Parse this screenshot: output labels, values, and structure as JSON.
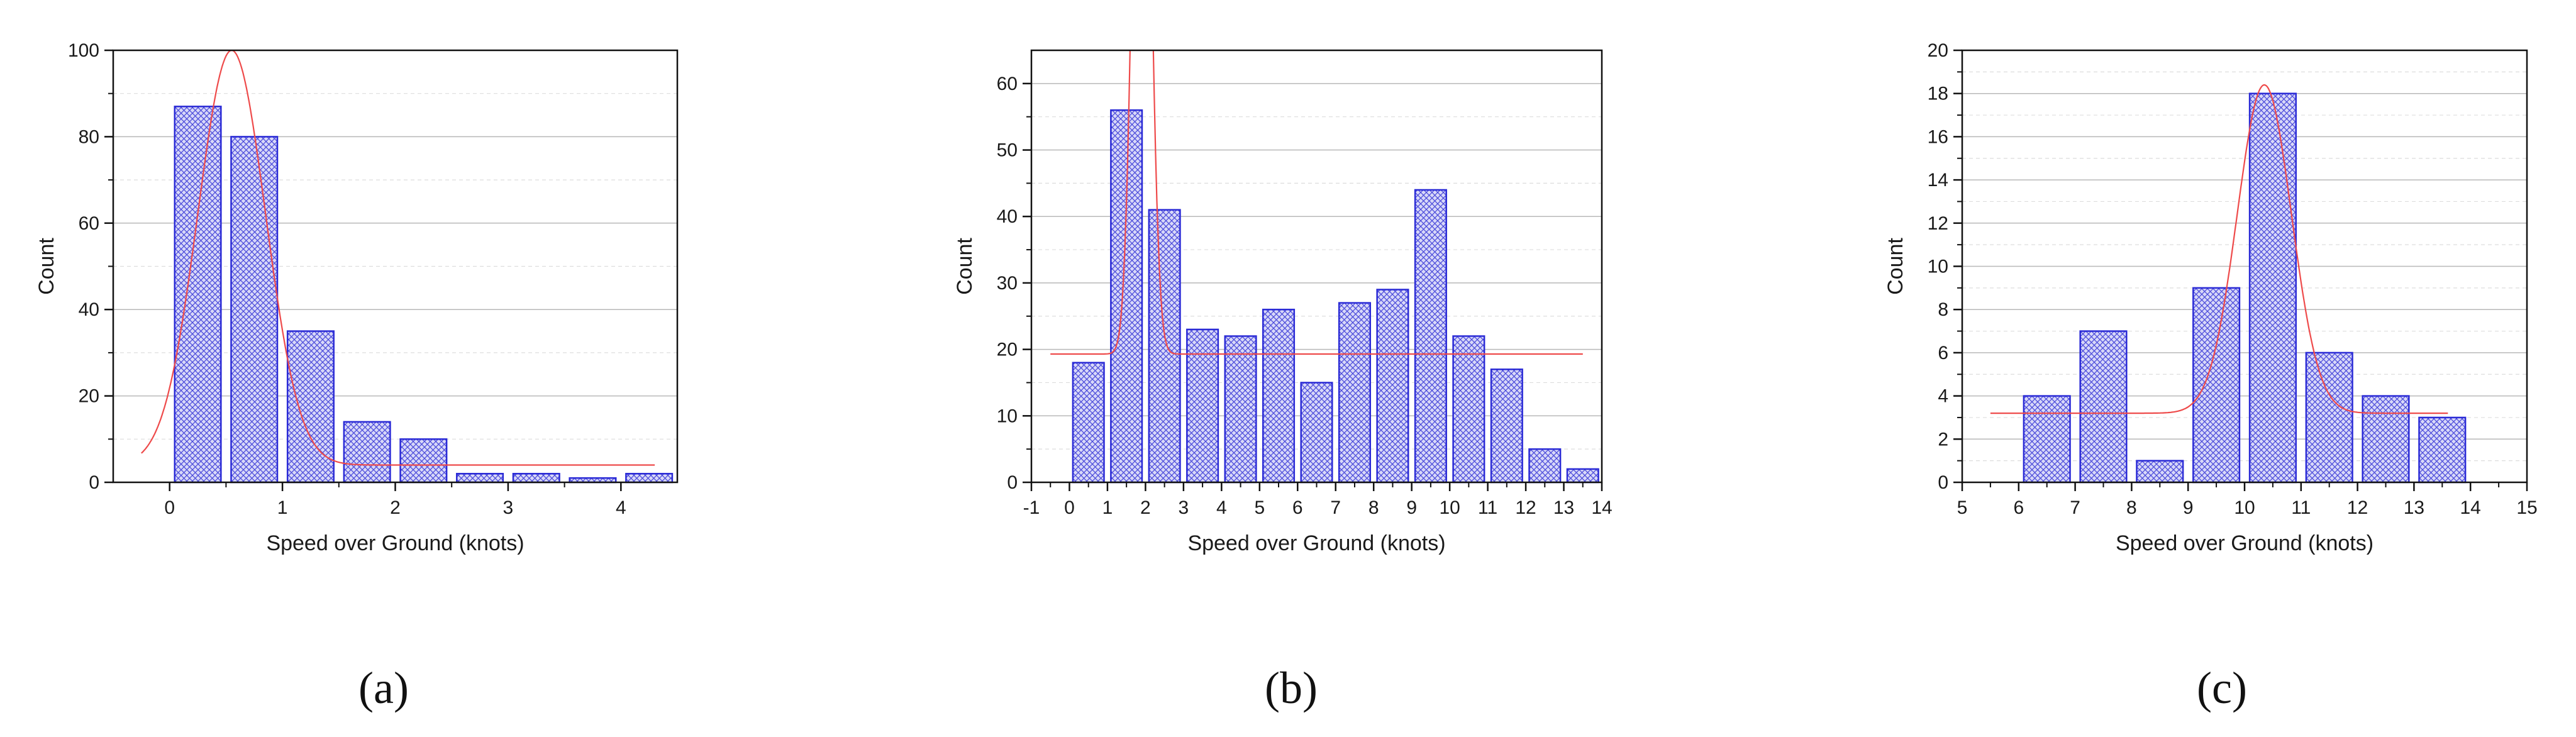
{
  "figure": {
    "panels": [
      "(a)",
      "(b)",
      "(c)"
    ]
  },
  "colors": {
    "bar_fill": "#d8d8f8",
    "bar_hatch": "#4b4bdb",
    "bar_edge": "#2a2ad6",
    "fit_line": "#ee4a4a",
    "grid_major": "#b8b8b8",
    "grid_minor": "#dddddd",
    "axis": "#111111"
  },
  "chart_data": [
    {
      "type": "bar",
      "caption": "(a)",
      "xlabel": "Speed over Ground (knots)",
      "ylabel": "Count",
      "xlim": [
        -0.5,
        4.5
      ],
      "ylim": [
        0,
        100
      ],
      "xticks": [
        0,
        1,
        2,
        3,
        4
      ],
      "yticks": [
        0,
        20,
        40,
        60,
        80,
        100
      ],
      "bin_width": 0.5,
      "bins": [
        0.0,
        0.5,
        1.0,
        1.5,
        2.0,
        2.5,
        3.0,
        3.5,
        4.0
      ],
      "values": [
        87,
        80,
        35,
        14,
        10,
        2,
        2,
        1,
        2
      ],
      "grid": true,
      "fit_curve": {
        "type": "gaussian",
        "baseline": 4,
        "amplitude": 96,
        "center": 0.55,
        "sigma": 0.3,
        "x_range": [
          -0.25,
          4.3
        ]
      }
    },
    {
      "type": "bar",
      "caption": "(b)",
      "xlabel": "Speed over Ground (knots)",
      "ylabel": "Count",
      "xlim": [
        -1,
        14
      ],
      "ylim": [
        0,
        65
      ],
      "xticks": [
        -1,
        0,
        1,
        2,
        3,
        4,
        5,
        6,
        7,
        8,
        9,
        10,
        11,
        12,
        13,
        14
      ],
      "yticks": [
        0,
        10,
        20,
        30,
        40,
        50,
        60
      ],
      "bin_width": 1,
      "bins": [
        0,
        1,
        2,
        3,
        4,
        5,
        6,
        7,
        8,
        9,
        10,
        11,
        12,
        13
      ],
      "values": [
        18,
        56,
        41,
        23,
        22,
        26,
        15,
        27,
        29,
        44,
        22,
        17,
        5,
        2
      ],
      "grid": true,
      "fit_curve": {
        "type": "gaussian",
        "baseline": 19.3,
        "amplitude": 120,
        "center": 1.9,
        "sigma": 0.22,
        "x_range": [
          -0.5,
          13.5
        ]
      }
    },
    {
      "type": "bar",
      "caption": "(c)",
      "xlabel": "Speed over Ground (knots)",
      "ylabel": "Count",
      "xlim": [
        5,
        15
      ],
      "ylim": [
        0,
        20
      ],
      "xticks": [
        5,
        6,
        7,
        8,
        9,
        10,
        11,
        12,
        13,
        14,
        15
      ],
      "yticks": [
        0,
        2,
        4,
        6,
        8,
        10,
        12,
        14,
        16,
        18,
        20
      ],
      "bin_width": 1,
      "bins": [
        6,
        7,
        8,
        9,
        10,
        11,
        12,
        13
      ],
      "values": [
        4,
        7,
        1,
        9,
        18,
        6,
        4,
        3
      ],
      "grid": true,
      "fit_curve": {
        "type": "gaussian",
        "baseline": 3.2,
        "amplitude": 15.2,
        "center": 10.35,
        "sigma": 0.48,
        "x_range": [
          5.5,
          13.6
        ]
      }
    }
  ]
}
